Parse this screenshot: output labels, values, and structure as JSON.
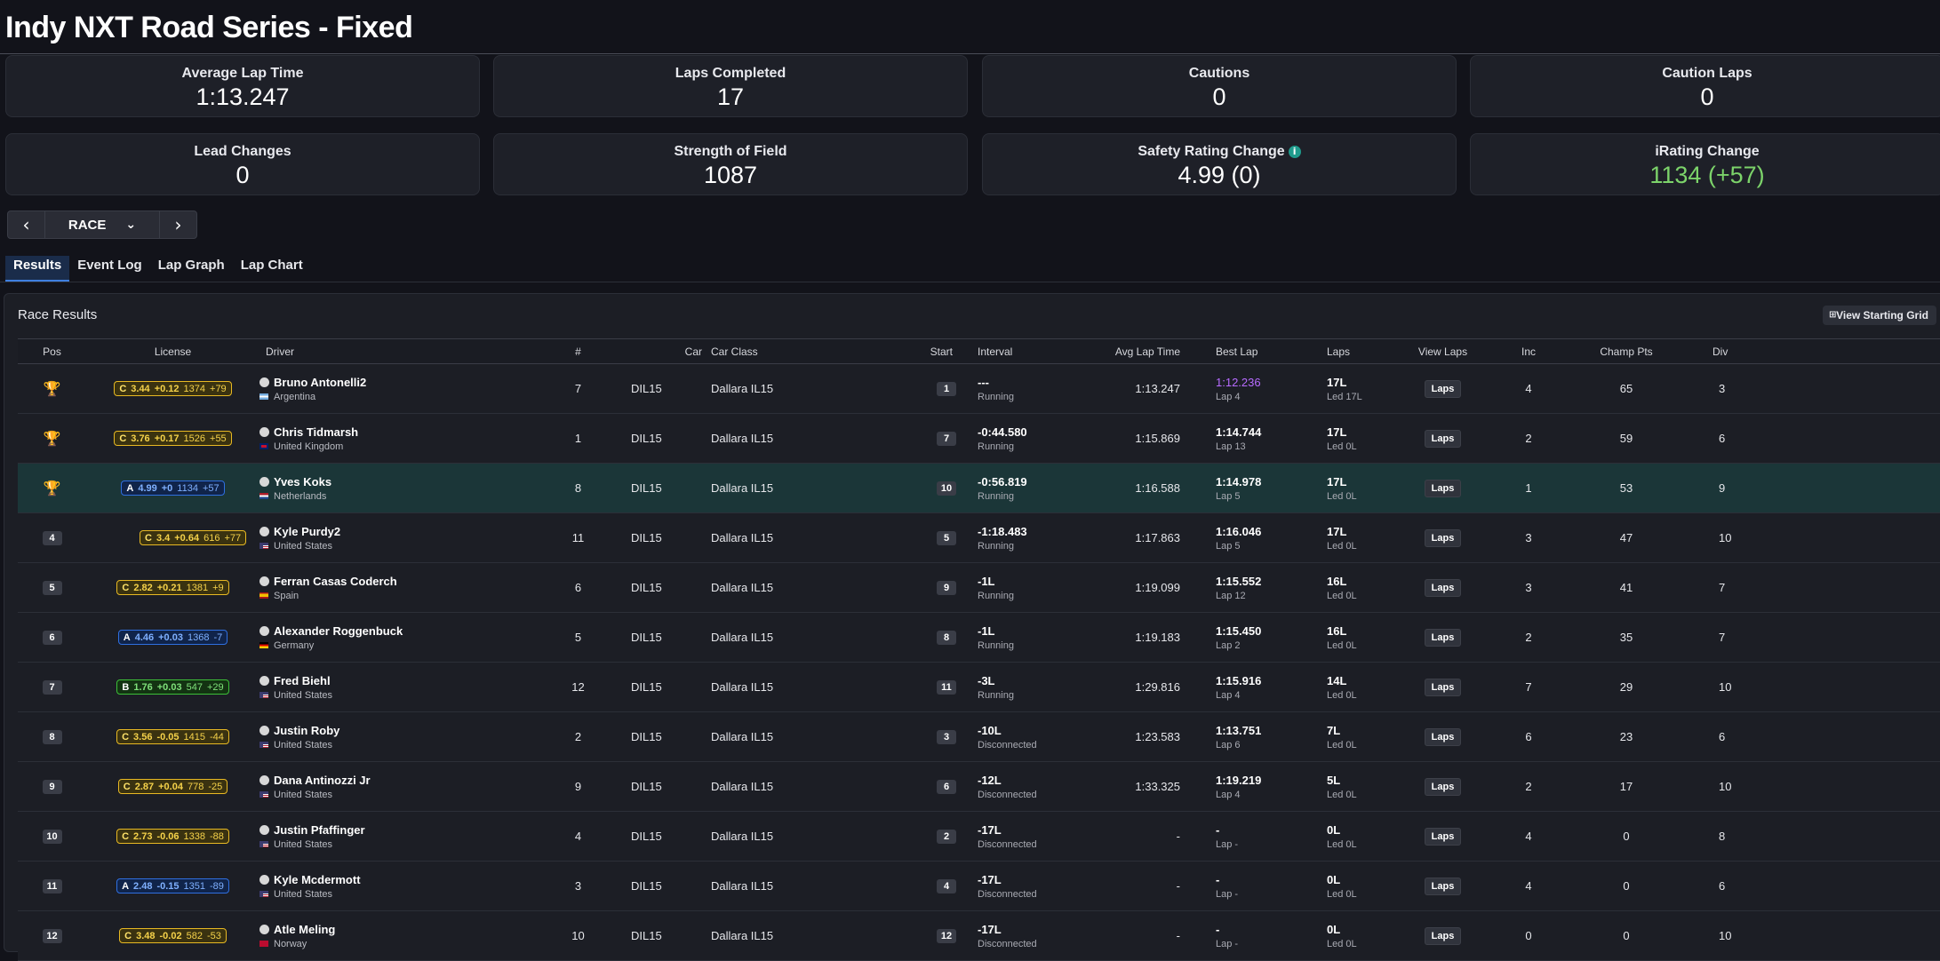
{
  "page": {
    "title": "Indy NXT Road Series - Fixed"
  },
  "stats": [
    {
      "label": "Average Lap Time",
      "value": "1:13.247"
    },
    {
      "label": "Laps Completed",
      "value": "17"
    },
    {
      "label": "Cautions",
      "value": "0"
    },
    {
      "label": "Caution Laps",
      "value": "0"
    },
    {
      "label": "Lead Changes",
      "value": "0"
    },
    {
      "label": "Strength of Field",
      "value": "1087"
    },
    {
      "label": "Safety Rating Change",
      "value": "4.99 (0)",
      "icon": "info-icon"
    },
    {
      "label": "iRating Change",
      "value": "1134 (+57)",
      "color": "#7cd36a"
    }
  ],
  "session_nav": {
    "selected": "RACE"
  },
  "tabs": [
    {
      "label": "Results",
      "active": true
    },
    {
      "label": "Event Log"
    },
    {
      "label": "Lap Graph"
    },
    {
      "label": "Lap Chart"
    }
  ],
  "panel": {
    "title": "Race Results",
    "view_grid_label": "View Starting Grid"
  },
  "columns": {
    "pos": "Pos",
    "license": "License",
    "driver": "Driver",
    "num": "#",
    "car": "Car",
    "car_class": "Car Class",
    "start": "Start",
    "interval": "Interval",
    "avg_lap": "Avg Lap Time",
    "best_lap": "Best Lap",
    "laps": "Laps",
    "view_laps": "View Laps",
    "inc": "Inc",
    "champ_pts": "Champ Pts",
    "div": "Div"
  },
  "laps_button_label": "Laps",
  "colors": {
    "license_C": "#e8b923",
    "license_A": "#2f6fe0",
    "license_B": "#3cbf38",
    "fastest_lap": "#b76bff",
    "highlight_row": "#1b3638"
  },
  "rows": [
    {
      "pos": "1",
      "trophy": "gold",
      "license": {
        "cls": "C",
        "sr": "3.44",
        "sr_change": "+0.12",
        "ir": "1374",
        "ir_change": "+79"
      },
      "driver": "Bruno Antonelli2",
      "country": "Argentina",
      "flag": "ar",
      "num": "7",
      "car": "DIL15",
      "car_class": "Dallara IL15",
      "start": "1",
      "interval": "---",
      "status": "Running",
      "avg_lap": "1:13.247",
      "best_lap": "1:12.236",
      "best_lap_fastest": true,
      "best_lap_sub": "Lap 4",
      "laps": "17L",
      "led": "Led 17L",
      "inc": "4",
      "champ_pts": "65",
      "div": "3"
    },
    {
      "pos": "2",
      "trophy": "silver",
      "license": {
        "cls": "C",
        "sr": "3.76",
        "sr_change": "+0.17",
        "ir": "1526",
        "ir_change": "+55"
      },
      "driver": "Chris Tidmarsh",
      "country": "United Kingdom",
      "flag": "gb",
      "num": "1",
      "car": "DIL15",
      "car_class": "Dallara IL15",
      "start": "7",
      "interval": "-0:44.580",
      "status": "Running",
      "avg_lap": "1:15.869",
      "best_lap": "1:14.744",
      "best_lap_sub": "Lap 13",
      "laps": "17L",
      "led": "Led 0L",
      "inc": "2",
      "champ_pts": "59",
      "div": "6"
    },
    {
      "pos": "3",
      "trophy": "bronze",
      "highlight": true,
      "license": {
        "cls": "A",
        "sr": "4.99",
        "sr_change": "+0",
        "ir": "1134",
        "ir_change": "+57"
      },
      "driver": "Yves Koks",
      "country": "Netherlands",
      "flag": "nl",
      "num": "8",
      "car": "DIL15",
      "car_class": "Dallara IL15",
      "start": "10",
      "interval": "-0:56.819",
      "status": "Running",
      "avg_lap": "1:16.588",
      "best_lap": "1:14.978",
      "best_lap_sub": "Lap 5",
      "laps": "17L",
      "led": "Led 0L",
      "inc": "1",
      "champ_pts": "53",
      "div": "9"
    },
    {
      "pos": "4",
      "license": {
        "cls": "C",
        "sr": "3.4",
        "sr_change": "+0.64",
        "ir": "616",
        "ir_change": "+77"
      },
      "driver": "Kyle Purdy2",
      "country": "United States",
      "flag": "us",
      "num": "11",
      "car": "DIL15",
      "car_class": "Dallara IL15",
      "start": "5",
      "interval": "-1:18.483",
      "status": "Running",
      "avg_lap": "1:17.863",
      "best_lap": "1:16.046",
      "best_lap_sub": "Lap 5",
      "laps": "17L",
      "led": "Led 0L",
      "inc": "3",
      "champ_pts": "47",
      "div": "10"
    },
    {
      "pos": "5",
      "license": {
        "cls": "C",
        "sr": "2.82",
        "sr_change": "+0.21",
        "ir": "1381",
        "ir_change": "+9"
      },
      "driver": "Ferran Casas Coderch",
      "country": "Spain",
      "flag": "es",
      "num": "6",
      "car": "DIL15",
      "car_class": "Dallara IL15",
      "start": "9",
      "interval": "-1L",
      "status": "Running",
      "avg_lap": "1:19.099",
      "best_lap": "1:15.552",
      "best_lap_sub": "Lap 12",
      "laps": "16L",
      "led": "Led 0L",
      "inc": "3",
      "champ_pts": "41",
      "div": "7"
    },
    {
      "pos": "6",
      "license": {
        "cls": "A",
        "sr": "4.46",
        "sr_change": "+0.03",
        "ir": "1368",
        "ir_change": "-7"
      },
      "driver": "Alexander Roggenbuck",
      "country": "Germany",
      "flag": "de",
      "num": "5",
      "car": "DIL15",
      "car_class": "Dallara IL15",
      "start": "8",
      "interval": "-1L",
      "status": "Running",
      "avg_lap": "1:19.183",
      "best_lap": "1:15.450",
      "best_lap_sub": "Lap 2",
      "laps": "16L",
      "led": "Led 0L",
      "inc": "2",
      "champ_pts": "35",
      "div": "7"
    },
    {
      "pos": "7",
      "license": {
        "cls": "B",
        "sr": "1.76",
        "sr_change": "+0.03",
        "ir": "547",
        "ir_change": "+29"
      },
      "driver": "Fred Biehl",
      "country": "United States",
      "flag": "us",
      "num": "12",
      "car": "DIL15",
      "car_class": "Dallara IL15",
      "start": "11",
      "interval": "-3L",
      "status": "Running",
      "avg_lap": "1:29.816",
      "best_lap": "1:15.916",
      "best_lap_sub": "Lap 4",
      "laps": "14L",
      "led": "Led 0L",
      "inc": "7",
      "champ_pts": "29",
      "div": "10"
    },
    {
      "pos": "8",
      "license": {
        "cls": "C",
        "sr": "3.56",
        "sr_change": "-0.05",
        "ir": "1415",
        "ir_change": "-44"
      },
      "driver": "Justin Roby",
      "country": "United States",
      "flag": "us",
      "num": "2",
      "car": "DIL15",
      "car_class": "Dallara IL15",
      "start": "3",
      "interval": "-10L",
      "status": "Disconnected",
      "avg_lap": "1:23.583",
      "best_lap": "1:13.751",
      "best_lap_sub": "Lap 6",
      "laps": "7L",
      "led": "Led 0L",
      "inc": "6",
      "champ_pts": "23",
      "div": "6"
    },
    {
      "pos": "9",
      "license": {
        "cls": "C",
        "sr": "2.87",
        "sr_change": "+0.04",
        "ir": "778",
        "ir_change": "-25"
      },
      "driver": "Dana Antinozzi Jr",
      "country": "United States",
      "flag": "us",
      "num": "9",
      "car": "DIL15",
      "car_class": "Dallara IL15",
      "start": "6",
      "interval": "-12L",
      "status": "Disconnected",
      "avg_lap": "1:33.325",
      "best_lap": "1:19.219",
      "best_lap_sub": "Lap 4",
      "laps": "5L",
      "led": "Led 0L",
      "inc": "2",
      "champ_pts": "17",
      "div": "10"
    },
    {
      "pos": "10",
      "license": {
        "cls": "C",
        "sr": "2.73",
        "sr_change": "-0.06",
        "ir": "1338",
        "ir_change": "-88"
      },
      "driver": "Justin Pfaffinger",
      "country": "United States",
      "flag": "us",
      "num": "4",
      "car": "DIL15",
      "car_class": "Dallara IL15",
      "start": "2",
      "interval": "-17L",
      "status": "Disconnected",
      "avg_lap": "-",
      "best_lap": "-",
      "best_lap_sub": "Lap -",
      "laps": "0L",
      "led": "Led 0L",
      "inc": "4",
      "champ_pts": "0",
      "div": "8"
    },
    {
      "pos": "11",
      "license": {
        "cls": "A",
        "sr": "2.48",
        "sr_change": "-0.15",
        "ir": "1351",
        "ir_change": "-89"
      },
      "driver": "Kyle Mcdermott",
      "country": "United States",
      "flag": "us",
      "num": "3",
      "car": "DIL15",
      "car_class": "Dallara IL15",
      "start": "4",
      "interval": "-17L",
      "status": "Disconnected",
      "avg_lap": "-",
      "best_lap": "-",
      "best_lap_sub": "Lap -",
      "laps": "0L",
      "led": "Led 0L",
      "inc": "4",
      "champ_pts": "0",
      "div": "6"
    },
    {
      "pos": "12",
      "license": {
        "cls": "C",
        "sr": "3.48",
        "sr_change": "-0.02",
        "ir": "582",
        "ir_change": "-53"
      },
      "driver": "Atle Meling",
      "country": "Norway",
      "flag": "no",
      "num": "10",
      "car": "DIL15",
      "car_class": "Dallara IL15",
      "start": "12",
      "interval": "-17L",
      "status": "Disconnected",
      "avg_lap": "-",
      "best_lap": "-",
      "best_lap_sub": "Lap -",
      "laps": "0L",
      "led": "Led 0L",
      "inc": "0",
      "champ_pts": "0",
      "div": "10"
    }
  ]
}
